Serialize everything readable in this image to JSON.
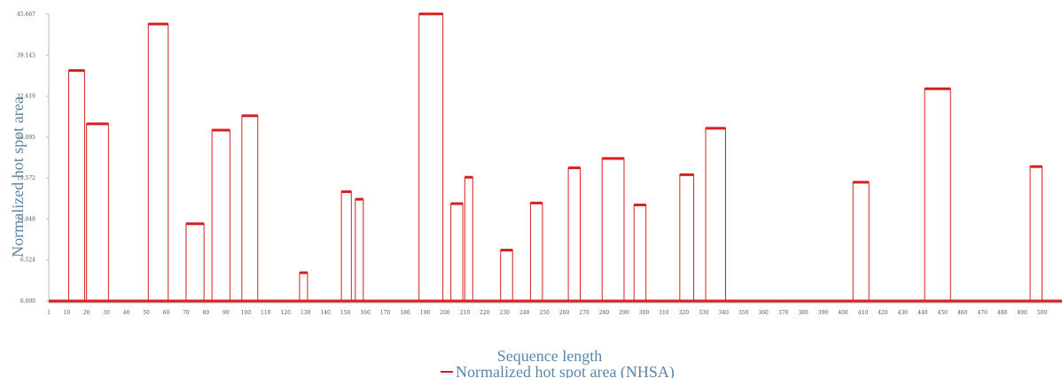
{
  "chart_data": {
    "type": "line",
    "xlabel": "Sequence length",
    "ylabel": "Normalized hot spot area",
    "legend": {
      "label": "Normalized hot spot area (NHSA)",
      "position": "bottom-center"
    },
    "xlim": [
      1,
      510
    ],
    "ylim": [
      0,
      45.667
    ],
    "y_ticks": [
      "6.000",
      "6.524",
      "13.048",
      "19.572",
      "26.095",
      "32.619",
      "39.143",
      "45.667"
    ],
    "x_ticks": [
      "1",
      "10",
      "20",
      "30",
      "40",
      "50",
      "60",
      "70",
      "80",
      "90",
      "100",
      "110",
      "120",
      "130",
      "140",
      "150",
      "160",
      "170",
      "180",
      "190",
      "200",
      "210",
      "220",
      "230",
      "240",
      "250",
      "260",
      "270",
      "280",
      "290",
      "300",
      "310",
      "320",
      "330",
      "340",
      "350",
      "360",
      "370",
      "380",
      "390",
      "400",
      "410",
      "420",
      "430",
      "440",
      "450",
      "460",
      "470",
      "480",
      "490",
      "500"
    ],
    "grid": false,
    "series": [
      {
        "name": "Normalized hot spot area (NHSA)",
        "color": "#d62020",
        "baseline_color": "#4a6fd0",
        "segments": [
          {
            "x0": 11,
            "x1": 19,
            "y": 36.7
          },
          {
            "x0": 20,
            "x1": 31,
            "y": 28.2
          },
          {
            "x0": 51,
            "x1": 61,
            "y": 44.1
          },
          {
            "x0": 70,
            "x1": 79,
            "y": 12.3
          },
          {
            "x0": 83,
            "x1": 92,
            "y": 27.2
          },
          {
            "x0": 98,
            "x1": 106,
            "y": 29.5
          },
          {
            "x0": 127,
            "x1": 131,
            "y": 4.5
          },
          {
            "x0": 148,
            "x1": 153,
            "y": 17.4
          },
          {
            "x0": 155,
            "x1": 159,
            "y": 16.2
          },
          {
            "x0": 187,
            "x1": 199,
            "y": 45.7
          },
          {
            "x0": 203,
            "x1": 209,
            "y": 15.5
          },
          {
            "x0": 210,
            "x1": 214,
            "y": 19.7
          },
          {
            "x0": 228,
            "x1": 234,
            "y": 8.1
          },
          {
            "x0": 243,
            "x1": 249,
            "y": 15.6
          },
          {
            "x0": 262,
            "x1": 268,
            "y": 21.2
          },
          {
            "x0": 279,
            "x1": 290,
            "y": 22.7
          },
          {
            "x0": 295,
            "x1": 301,
            "y": 15.3
          },
          {
            "x0": 318,
            "x1": 325,
            "y": 20.1
          },
          {
            "x0": 331,
            "x1": 341,
            "y": 27.5
          },
          {
            "x0": 405,
            "x1": 413,
            "y": 18.9
          },
          {
            "x0": 441,
            "x1": 454,
            "y": 33.8
          },
          {
            "x0": 494,
            "x1": 500,
            "y": 21.4
          }
        ]
      }
    ]
  }
}
